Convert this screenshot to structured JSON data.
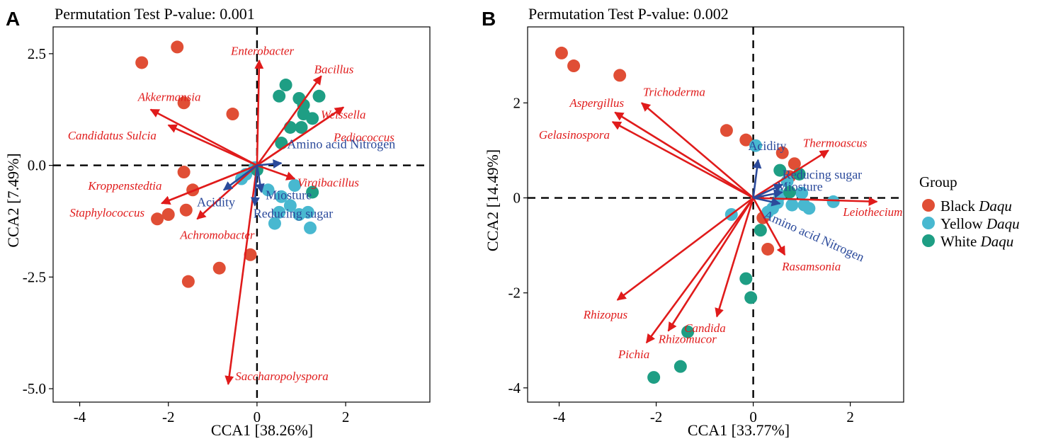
{
  "colors": {
    "black_daqu": "#e04e35",
    "yellow_daqu": "#48b8d0",
    "white_daqu": "#1e9e84",
    "species_arrow": "#e01b1b",
    "env_arrow": "#2b4a9b"
  },
  "legend": {
    "title": "Group",
    "items": [
      {
        "key": "black",
        "prefix": "Black",
        "suffix": "Daqu",
        "color": "#e04e35"
      },
      {
        "key": "yellow",
        "prefix": "Yellow",
        "suffix": "Daqu",
        "color": "#48b8d0"
      },
      {
        "key": "white",
        "prefix": "White",
        "suffix": "Daqu",
        "color": "#1e9e84"
      }
    ]
  },
  "chart_data": [
    {
      "type": "scatter",
      "panel": "A",
      "title": "Permutation Test P-value: 0.001",
      "xlabel": "CCA1 [38.26%]",
      "ylabel": "CCA2 [7.49%]",
      "xlim": [
        -4.6,
        3.9
      ],
      "ylim": [
        -5.3,
        3.1
      ],
      "xticks": [
        {
          "v": -4,
          "t": "-4"
        },
        {
          "v": -2,
          "t": "-2"
        },
        {
          "v": 0,
          "t": "0"
        },
        {
          "v": 2,
          "t": "2"
        }
      ],
      "yticks": [
        {
          "v": 2.5,
          "t": "2.5"
        },
        {
          "v": 0,
          "t": "0.0"
        },
        {
          "v": -2.5,
          "t": "-2.5"
        },
        {
          "v": -5,
          "t": "-5.0"
        }
      ],
      "points": {
        "black": [
          [
            -1.8,
            2.65
          ],
          [
            -2.6,
            2.3
          ],
          [
            -1.65,
            1.4
          ],
          [
            -0.55,
            1.15
          ],
          [
            -1.65,
            -0.15
          ],
          [
            -1.45,
            -0.55
          ],
          [
            -1.6,
            -1.0
          ],
          [
            -2.0,
            -1.1
          ],
          [
            -2.25,
            -1.2
          ],
          [
            -0.85,
            -2.3
          ],
          [
            -0.15,
            -2.0
          ],
          [
            -1.55,
            -2.6
          ]
        ],
        "yellow": [
          [
            -0.35,
            -0.3
          ],
          [
            -0.25,
            -0.2
          ],
          [
            -0.05,
            -0.05
          ],
          [
            0.25,
            -0.55
          ],
          [
            0.55,
            -0.7
          ],
          [
            0.75,
            -0.9
          ],
          [
            0.5,
            -1.05
          ],
          [
            0.95,
            -1.1
          ],
          [
            1.15,
            -1.05
          ],
          [
            0.4,
            -1.3
          ],
          [
            0.85,
            -0.45
          ],
          [
            1.2,
            -1.4
          ]
        ],
        "white": [
          [
            0.65,
            1.8
          ],
          [
            0.5,
            1.55
          ],
          [
            0.95,
            1.5
          ],
          [
            1.4,
            1.55
          ],
          [
            1.05,
            1.35
          ],
          [
            1.05,
            1.15
          ],
          [
            1.25,
            1.05
          ],
          [
            0.75,
            0.85
          ],
          [
            1.0,
            0.85
          ],
          [
            0.55,
            0.5
          ],
          [
            1.25,
            -0.6
          ],
          [
            0.0,
            -0.1
          ]
        ]
      },
      "species": [
        {
          "name": "Enterobacter",
          "x": 0.05,
          "y": 2.35
        },
        {
          "name": "Bacillus",
          "x": 1.45,
          "y": 2.0
        },
        {
          "name": "Weissella",
          "x": 1.95,
          "y": 1.3
        },
        {
          "name": "Pediococcus",
          "x": 1.95,
          "y": 1.3
        },
        {
          "name": "Akkermansia",
          "x": -2.4,
          "y": 1.25
        },
        {
          "name": "Candidatus Sulcia",
          "x": -2.0,
          "y": 0.9
        },
        {
          "name": "Kroppenstedtia",
          "x": -2.15,
          "y": -0.85
        },
        {
          "name": "Staphylococcus",
          "x": -2.15,
          "y": -0.85
        },
        {
          "name": "Achromobacter",
          "x": -1.35,
          "y": -1.2
        },
        {
          "name": "Virgibacillus",
          "x": 0.85,
          "y": -0.3
        },
        {
          "name": "Saccharopolyspora",
          "x": -0.65,
          "y": -4.9
        }
      ],
      "env": [
        {
          "name": "Amino acid Nitrogen",
          "x": 0.55,
          "y": 0.05
        },
        {
          "name": "Acidity",
          "x": -0.75,
          "y": -0.55
        },
        {
          "name": "Miosture",
          "x": 0.1,
          "y": -0.6
        },
        {
          "name": "Reducing sugar",
          "x": -0.05,
          "y": -0.9
        }
      ]
    },
    {
      "type": "scatter",
      "panel": "B",
      "title": "Permutation Test P-value: 0.002",
      "xlabel": "CCA1 [33.77%]",
      "ylabel": "CCA2 [14.49%]",
      "xlim": [
        -4.65,
        3.1
      ],
      "ylim": [
        -4.3,
        3.6
      ],
      "xticks": [
        {
          "v": -4,
          "t": "-4"
        },
        {
          "v": -2,
          "t": "-2"
        },
        {
          "v": 0,
          "t": "0"
        },
        {
          "v": 2,
          "t": "2"
        }
      ],
      "yticks": [
        {
          "v": 2,
          "t": "2"
        },
        {
          "v": 0,
          "t": "0"
        },
        {
          "v": -2,
          "t": "-2"
        },
        {
          "v": -4,
          "t": "-4"
        }
      ],
      "points": {
        "black": [
          [
            -3.95,
            3.05
          ],
          [
            -3.7,
            2.78
          ],
          [
            -2.75,
            2.58
          ],
          [
            -0.55,
            1.42
          ],
          [
            -0.15,
            1.22
          ],
          [
            0.85,
            0.72
          ],
          [
            0.6,
            0.95
          ],
          [
            0.75,
            0.45
          ],
          [
            0.2,
            -0.42
          ],
          [
            0.3,
            -1.08
          ]
        ],
        "yellow": [
          [
            -0.45,
            -0.35
          ],
          [
            0.05,
            1.1
          ],
          [
            0.7,
            0.35
          ],
          [
            1.0,
            0.1
          ],
          [
            1.05,
            -0.15
          ],
          [
            1.15,
            -0.22
          ],
          [
            0.8,
            -0.15
          ],
          [
            0.5,
            -0.1
          ],
          [
            0.4,
            -0.22
          ],
          [
            0.3,
            -0.3
          ],
          [
            1.65,
            -0.08
          ],
          [
            0.55,
            0.05
          ]
        ],
        "white": [
          [
            0.55,
            0.58
          ],
          [
            0.95,
            0.5
          ],
          [
            0.75,
            0.12
          ],
          [
            0.15,
            -0.68
          ],
          [
            -0.15,
            -1.7
          ],
          [
            -0.05,
            -2.1
          ],
          [
            -1.35,
            -2.82
          ],
          [
            -1.5,
            -3.55
          ],
          [
            -2.05,
            -3.78
          ]
        ]
      },
      "species": [
        {
          "name": "Trichoderma",
          "x": -2.3,
          "y": 2.0
        },
        {
          "name": "Aspergillus",
          "x": -2.85,
          "y": 1.8
        },
        {
          "name": "Gelasinospora",
          "x": -2.9,
          "y": 1.6
        },
        {
          "name": "Thermoascus",
          "x": 1.55,
          "y": 1.0
        },
        {
          "name": "Leiothecium",
          "x": 2.55,
          "y": -0.08
        },
        {
          "name": "Rasamsonia",
          "x": 0.65,
          "y": -1.2
        },
        {
          "name": "Rhizopus",
          "x": -2.8,
          "y": -2.15
        },
        {
          "name": "Candida",
          "x": -0.75,
          "y": -2.5
        },
        {
          "name": "Rhizomucor",
          "x": -1.75,
          "y": -2.8
        },
        {
          "name": "Pichia",
          "x": -2.2,
          "y": -3.05
        }
      ],
      "env": [
        {
          "name": "Acidity",
          "x": 0.1,
          "y": 0.8
        },
        {
          "name": "Reducing sugar",
          "x": 0.6,
          "y": 0.28
        },
        {
          "name": "Miosture",
          "x": 0.6,
          "y": 0.12
        },
        {
          "name": "Amino acid Nitrogen",
          "x": 0.55,
          "y": -0.12
        }
      ]
    }
  ]
}
